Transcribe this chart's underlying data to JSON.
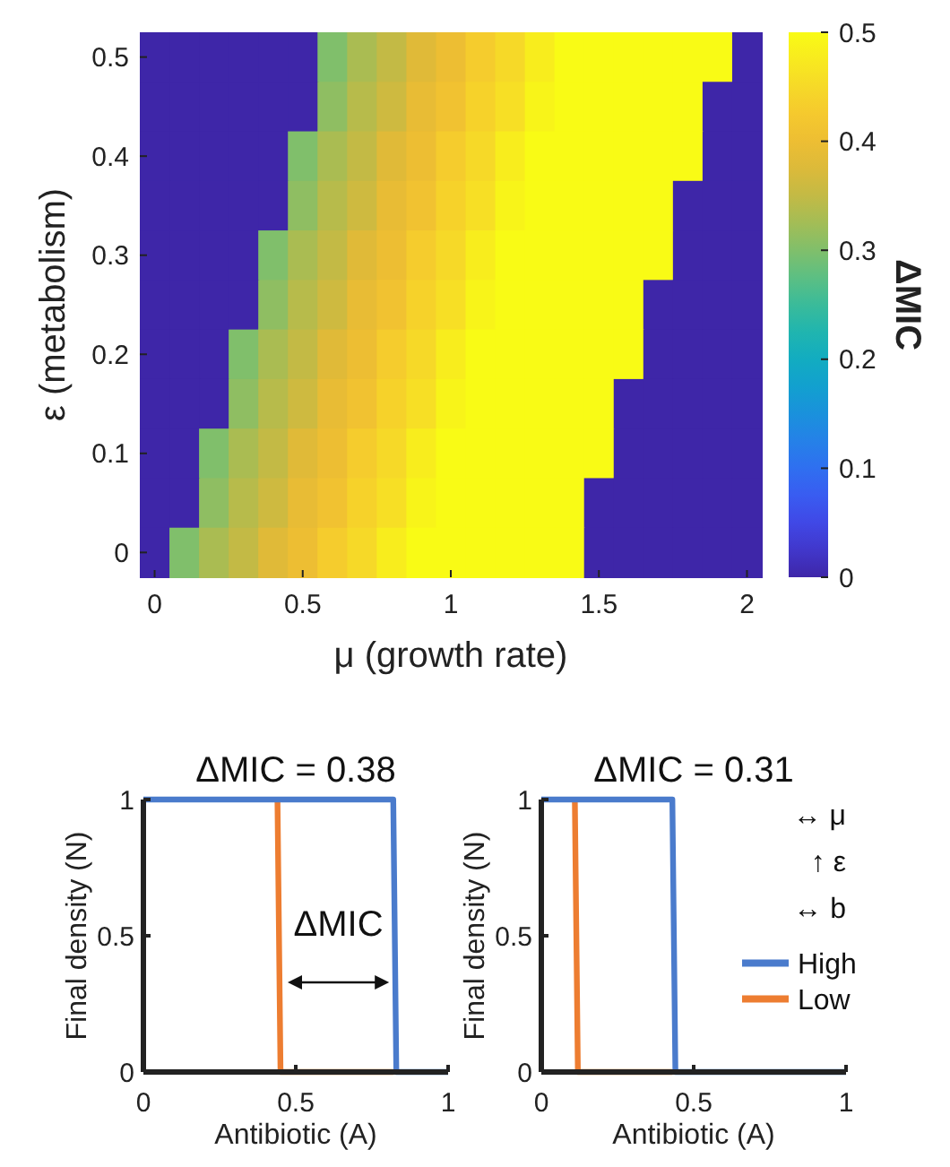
{
  "chart_data": [
    {
      "type": "heatmap",
      "xlabel": "μ (growth rate)",
      "ylabel": "ε (metabolism)",
      "clabel": "ΔMIC",
      "categories": [
        "0",
        null,
        null,
        null,
        null,
        "0.5",
        null,
        null,
        null,
        null,
        "1",
        null,
        null,
        null,
        null,
        "1.5",
        null,
        null,
        null,
        null,
        "2"
      ],
      "y_categories": [
        "0.5",
        null,
        "0.4",
        null,
        "0.3",
        null,
        "0.2",
        null,
        "0.1",
        null,
        "0"
      ],
      "clim": [
        0,
        0.5
      ],
      "cticks": [
        0,
        0.1,
        0.2,
        0.3,
        0.4,
        0.5
      ],
      "cells": [
        [
          0,
          0,
          0,
          0,
          0,
          0,
          0.3,
          0.33,
          0.35,
          0.38,
          0.4,
          0.43,
          0.45,
          0.48,
          0.5,
          0.5,
          0.5,
          0.5,
          0.5,
          0.5,
          0
        ],
        [
          0,
          0,
          0,
          0,
          0,
          0,
          0.31,
          0.34,
          0.36,
          0.39,
          0.41,
          0.44,
          0.46,
          0.49,
          0.5,
          0.5,
          0.5,
          0.5,
          0.5,
          0,
          0
        ],
        [
          0,
          0,
          0,
          0,
          0,
          0.3,
          0.33,
          0.35,
          0.38,
          0.4,
          0.43,
          0.45,
          0.48,
          0.5,
          0.5,
          0.5,
          0.5,
          0.5,
          0.5,
          0,
          0
        ],
        [
          0,
          0,
          0,
          0,
          0,
          0.31,
          0.34,
          0.36,
          0.39,
          0.41,
          0.44,
          0.46,
          0.49,
          0.5,
          0.5,
          0.5,
          0.5,
          0.5,
          0,
          0,
          0
        ],
        [
          0,
          0,
          0,
          0,
          0.3,
          0.33,
          0.35,
          0.38,
          0.4,
          0.43,
          0.45,
          0.48,
          0.5,
          0.5,
          0.5,
          0.5,
          0.5,
          0.5,
          0,
          0,
          0
        ],
        [
          0,
          0,
          0,
          0,
          0.31,
          0.34,
          0.36,
          0.39,
          0.41,
          0.44,
          0.46,
          0.49,
          0.5,
          0.5,
          0.5,
          0.5,
          0.5,
          0,
          0,
          0,
          0
        ],
        [
          0,
          0,
          0,
          0.3,
          0.33,
          0.35,
          0.38,
          0.4,
          0.43,
          0.45,
          0.48,
          0.5,
          0.5,
          0.5,
          0.5,
          0.5,
          0.5,
          0,
          0,
          0,
          0
        ],
        [
          0,
          0,
          0,
          0.31,
          0.34,
          0.36,
          0.39,
          0.41,
          0.44,
          0.46,
          0.49,
          0.5,
          0.5,
          0.5,
          0.5,
          0.5,
          0,
          0,
          0,
          0,
          0
        ],
        [
          0,
          0,
          0.3,
          0.33,
          0.35,
          0.38,
          0.4,
          0.43,
          0.45,
          0.48,
          0.5,
          0.5,
          0.5,
          0.5,
          0.5,
          0.5,
          0,
          0,
          0,
          0,
          0
        ],
        [
          0,
          0,
          0.31,
          0.34,
          0.36,
          0.39,
          0.41,
          0.44,
          0.46,
          0.49,
          0.5,
          0.5,
          0.5,
          0.5,
          0.5,
          0,
          0,
          0,
          0,
          0,
          0
        ],
        [
          0,
          0.3,
          0.33,
          0.35,
          0.38,
          0.4,
          0.43,
          0.45,
          0.48,
          0.5,
          0.5,
          0.5,
          0.5,
          0.5,
          0.5,
          0,
          0,
          0,
          0,
          0,
          0
        ]
      ]
    },
    {
      "type": "line",
      "title": "ΔMIC = 0.38",
      "xlabel": "Antibiotic (A)",
      "ylabel": "Final density (N)",
      "xlim": [
        0,
        1
      ],
      "xticks": [
        0,
        0.5,
        1
      ],
      "ylim": [
        0,
        1
      ],
      "yticks": [
        0,
        0.5,
        1
      ],
      "legend": false,
      "annotations": [
        "ΔMIC"
      ],
      "series": [
        {
          "color": "#4a7bcc",
          "x": [
            0,
            0.82,
            0.83,
            1
          ],
          "values": [
            1,
            1,
            0,
            0
          ]
        },
        {
          "color": "#ed7d31",
          "x": [
            0.44,
            0.45,
            0.82
          ],
          "values": [
            1,
            0,
            0
          ]
        }
      ]
    },
    {
      "type": "line",
      "title": "ΔMIC = 0.31",
      "xlabel": "Antibiotic (A)",
      "ylabel": "Final density (N)",
      "xlim": [
        0,
        1
      ],
      "xticks": [
        0,
        0.5,
        1
      ],
      "ylim": [
        0,
        1
      ],
      "yticks": [
        0,
        0.5,
        1
      ],
      "legend": "right",
      "annotations": [
        "↔ μ",
        "↑ ε",
        "↔ b"
      ],
      "series": [
        {
          "name": "High",
          "color": "#4a7bcc",
          "x": [
            0,
            0.43,
            0.44,
            1
          ],
          "values": [
            1,
            1,
            0,
            0
          ]
        },
        {
          "name": "Low",
          "color": "#ed7d31",
          "x": [
            0.11,
            0.12,
            0.43
          ],
          "values": [
            1,
            0,
            0
          ]
        }
      ]
    }
  ]
}
